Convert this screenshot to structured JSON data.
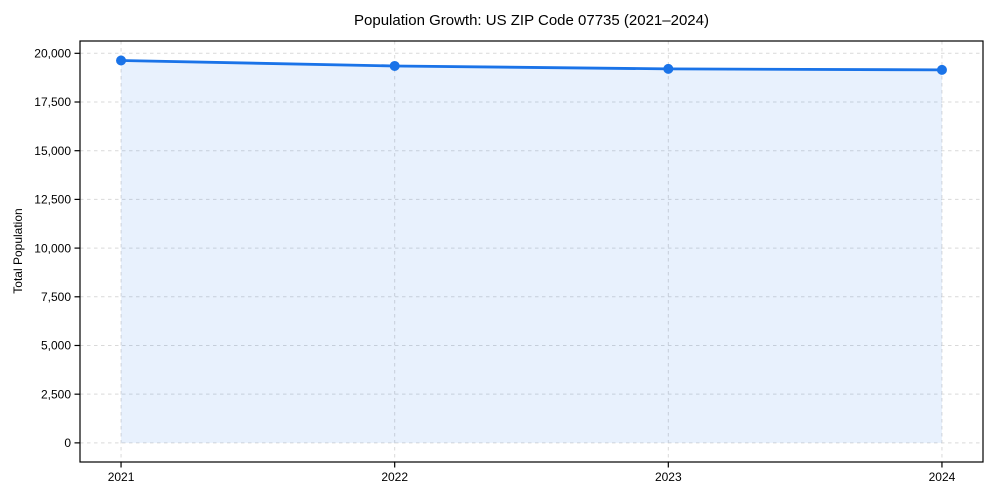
{
  "window": {
    "background": "#ffffff"
  },
  "chart_data": {
    "type": "line",
    "title": "Population Growth: US ZIP Code 07735 (2021–2024)",
    "xlabel": "",
    "ylabel": "Total Population",
    "categories": [
      "2021",
      "2022",
      "2023",
      "2024"
    ],
    "x": [
      2021,
      2022,
      2023,
      2024
    ],
    "series": [
      {
        "name": "Total Population",
        "values": [
          19630,
          19350,
          19200,
          19150
        ],
        "color": "#1a73e8",
        "marker": "circle",
        "marker_radius": 5,
        "line_width": 2.8,
        "area_fill": true,
        "area_color": "rgba(26, 115, 232, 0.10)",
        "area_baseline": 0
      }
    ],
    "yticks": [
      0,
      2500,
      5000,
      7500,
      10000,
      12500,
      15000,
      17500,
      20000
    ],
    "ytick_labels": [
      "0",
      "2,500",
      "5,000",
      "7,500",
      "10,000",
      "12,500",
      "15,000",
      "17,500",
      "20,000"
    ],
    "xlim": [
      2020.85,
      2024.15
    ],
    "ylim": [
      -982,
      20632
    ],
    "grid": {
      "visible": true,
      "style": "dashed",
      "color": "#d9d9d9",
      "orientation": "both"
    },
    "legend_position": "none",
    "axes_color": "#000000",
    "tick_label_color": "#000000"
  }
}
